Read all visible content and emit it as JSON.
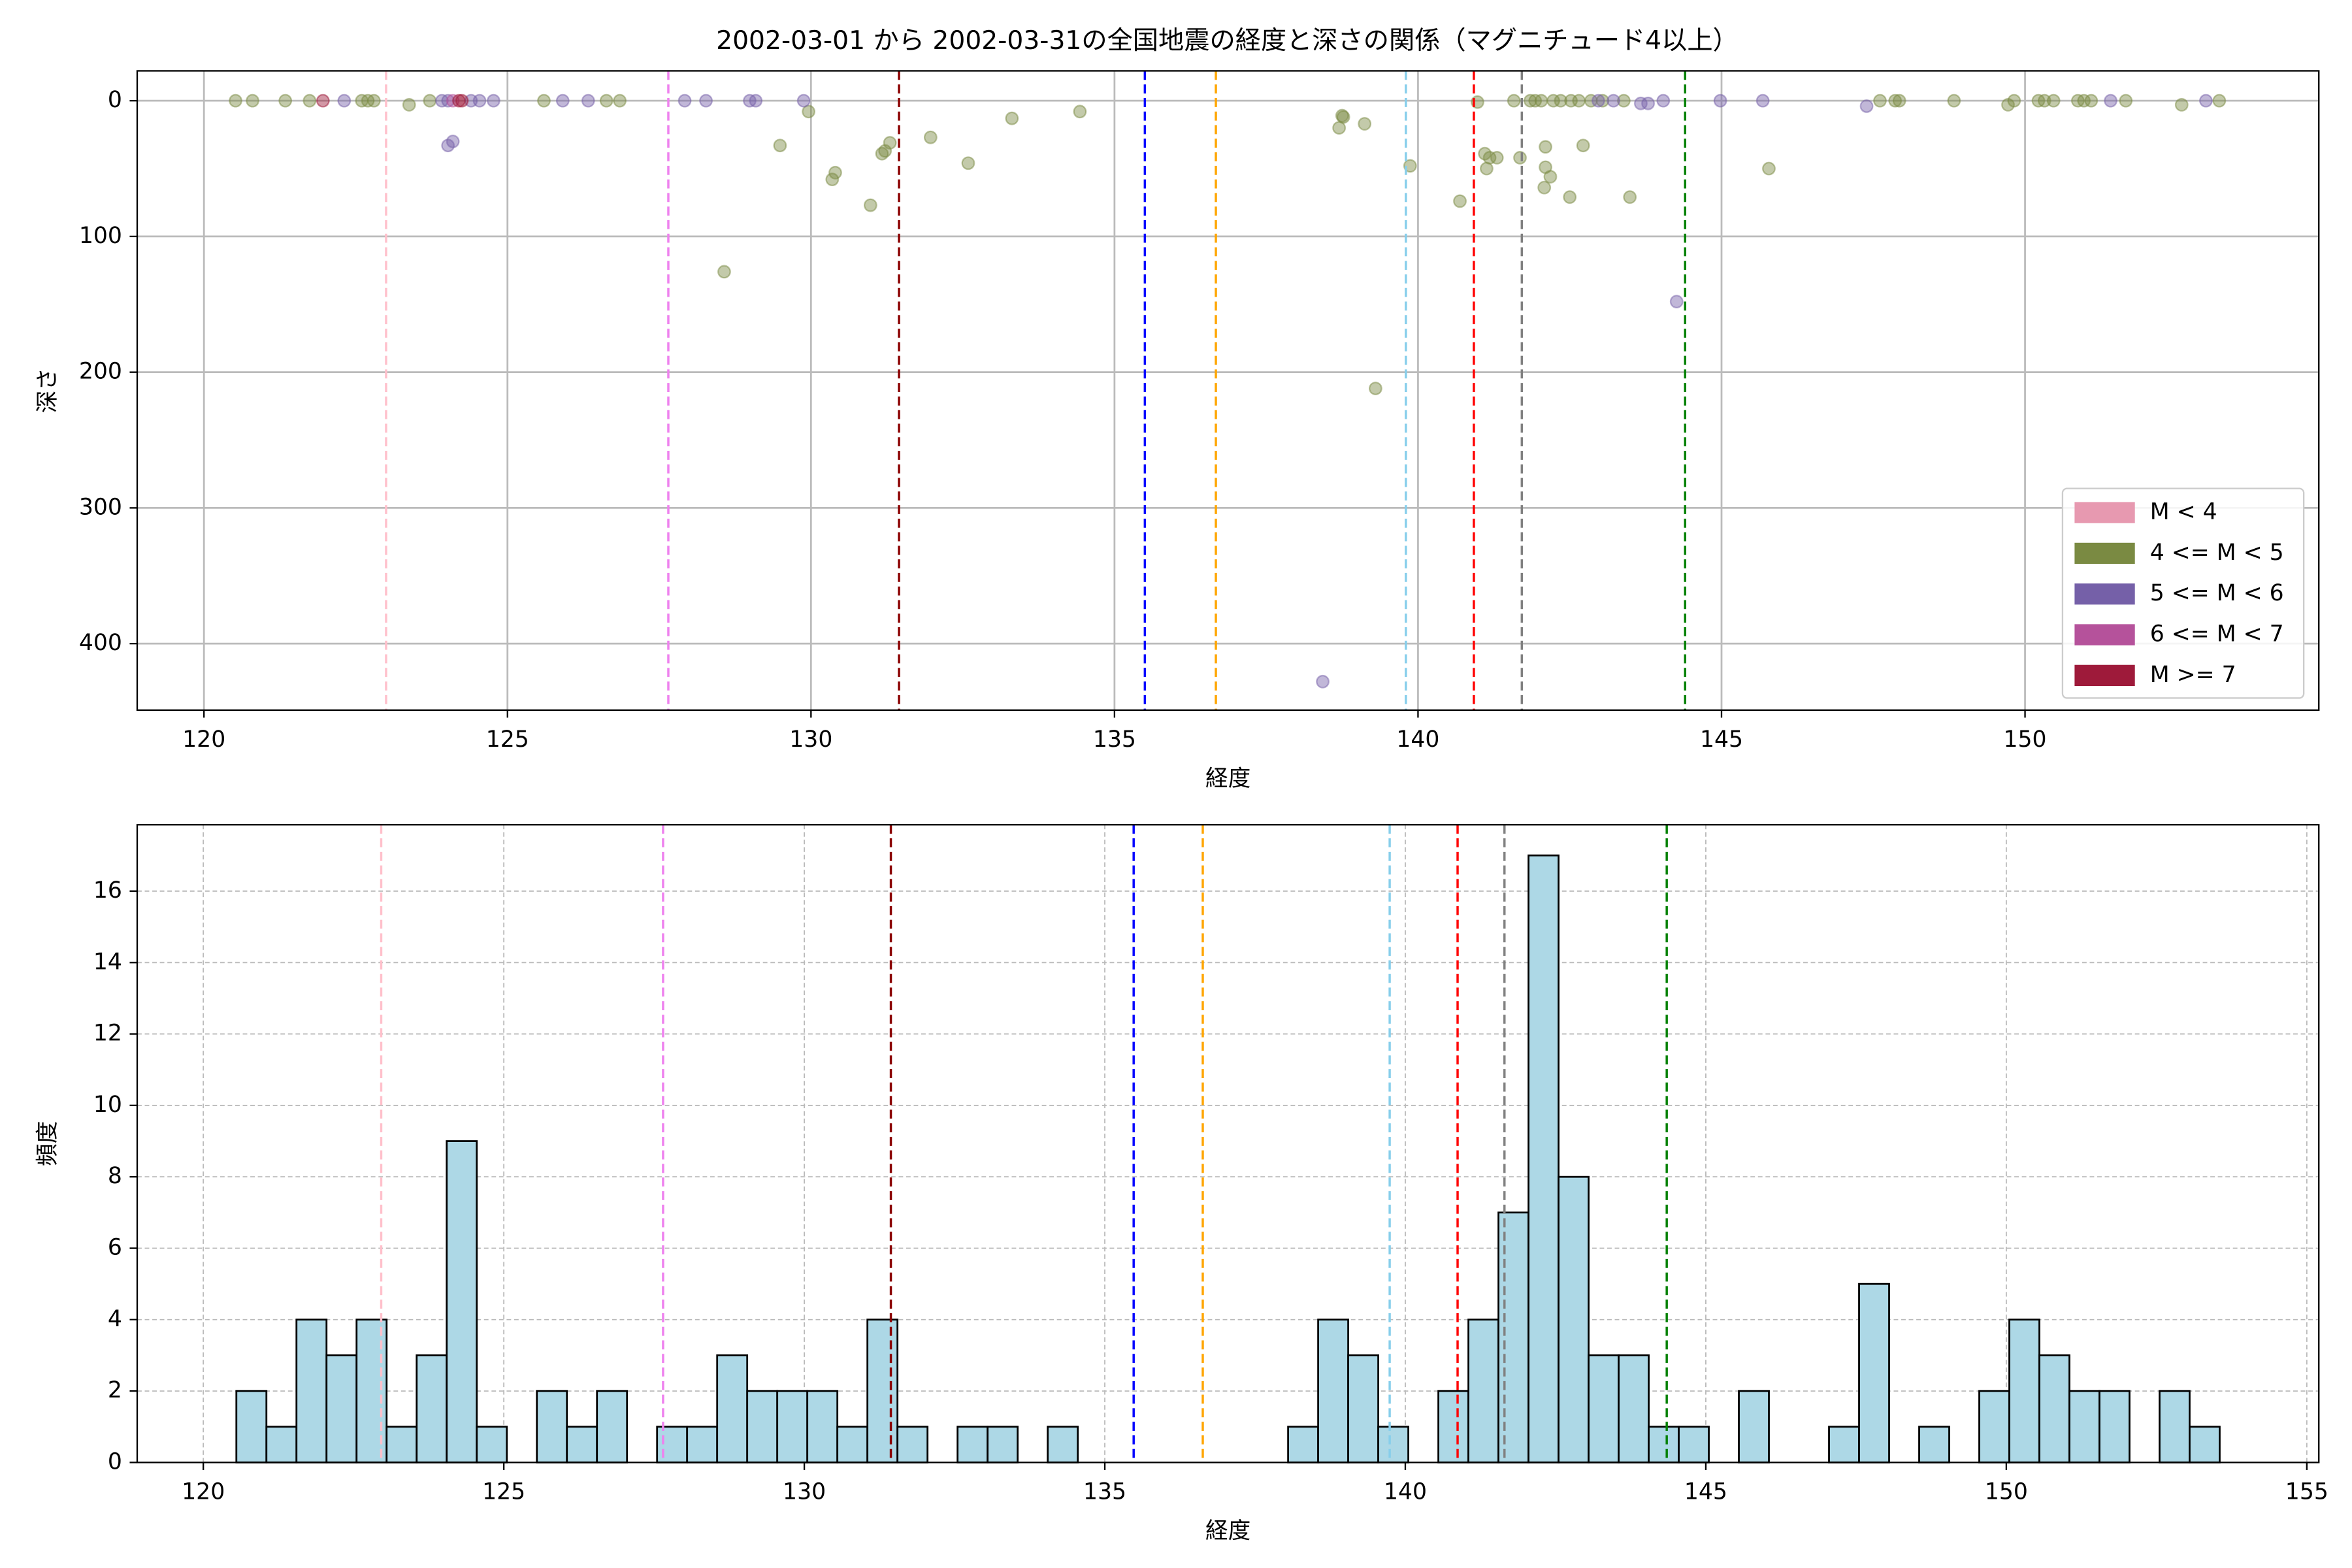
{
  "chart_data": [
    {
      "type": "scatter",
      "title": "2002-03-01 から 2002-03-31の全国地震の経度と深さの関係（マグニチュード4以上）",
      "xlabel": "経度",
      "ylabel": "深さ",
      "xlim": [
        118.9,
        154.84
      ],
      "ylim": [
        449,
        -22
      ],
      "xticks": [
        120,
        125,
        130,
        135,
        140,
        145,
        150
      ],
      "yticks": [
        0,
        100,
        200,
        300,
        400
      ],
      "grid": true,
      "grid_linestyle": "solid",
      "legend": "lower right",
      "vlines": [
        {
          "value": 123,
          "color": "pink"
        },
        {
          "value": 127.65,
          "color": "violet"
        },
        {
          "value": 131.45,
          "color": "darkred"
        },
        {
          "value": 135.5,
          "color": "blue"
        },
        {
          "value": 136.67,
          "color": "orange"
        },
        {
          "value": 139.8,
          "color": "skyblue"
        },
        {
          "value": 140.92,
          "color": "red"
        },
        {
          "value": 141.71,
          "color": "gray"
        },
        {
          "value": 144.4,
          "color": "green"
        }
      ],
      "series": [
        {
          "name": "M < 4",
          "color": "#e799b0",
          "x": [],
          "values": []
        },
        {
          "name": "4 <= M < 5",
          "color": "#7a8a42",
          "x": [
            120.52,
            120.8,
            121.34,
            121.74,
            122.6,
            122.7,
            122.8,
            123.38,
            123.72,
            125.6,
            126.63,
            126.85,
            129.49,
            129.96,
            128.57,
            130.35,
            130.4,
            130.98,
            131.17,
            131.22,
            131.3,
            131.97,
            132.59,
            133.31,
            134.43,
            138.7,
            138.75,
            138.77,
            139.12,
            139.3,
            139.87,
            140.69,
            140.98,
            141.1,
            141.13,
            141.18,
            141.3,
            141.58,
            141.68,
            141.85,
            141.93,
            142.03,
            142.1,
            142.1,
            142.08,
            142.18,
            142.23,
            142.35,
            142.52,
            142.5,
            142.65,
            142.72,
            142.85,
            143.04,
            143.39,
            143.49,
            145.78,
            147.61,
            147.86,
            147.93,
            148.83,
            149.72,
            149.82,
            150.22,
            150.32,
            150.47,
            150.87,
            150.97,
            151.09,
            151.66,
            152.58,
            153.2
          ],
          "values": [
            0,
            0,
            0,
            0,
            0,
            0,
            0,
            3,
            0,
            0,
            0,
            0,
            33,
            8,
            126,
            58,
            53,
            77,
            39,
            37,
            31,
            27,
            46,
            13,
            8,
            20,
            11,
            12,
            17,
            212,
            48,
            74,
            1,
            39,
            50,
            42,
            42,
            0,
            42,
            0,
            0,
            0,
            34,
            49,
            64,
            56,
            0,
            0,
            0,
            71,
            0,
            33,
            0,
            0,
            0,
            71,
            50,
            0,
            0,
            0,
            0,
            3,
            0,
            0,
            0,
            0,
            0,
            0,
            0,
            0,
            3,
            0
          ]
        },
        {
          "name": "5 <= M < 6",
          "color": "#7560a8",
          "x": [
            122.31,
            123.92,
            124.02,
            124.02,
            124.1,
            124.4,
            124.54,
            124.77,
            125.91,
            126.33,
            127.92,
            128.27,
            128.99,
            129.09,
            129.88,
            138.43,
            142.97,
            143.22,
            143.67,
            143.79,
            144.04,
            144.26,
            144.98,
            145.68,
            147.39,
            151.41,
            152.98
          ],
          "values": [
            0,
            0,
            0,
            33,
            30,
            0,
            0,
            0,
            0,
            0,
            0,
            0,
            0,
            0,
            0,
            428,
            0,
            0,
            2,
            2,
            0,
            148,
            0,
            0,
            4,
            0,
            0
          ]
        },
        {
          "name": "6 <= M < 7",
          "color": "#b5529b",
          "x": [
            124.1
          ],
          "values": [
            0
          ]
        },
        {
          "name": "M >= 7",
          "color": "#9e1a3a",
          "x": [
            121.96,
            124.2,
            124.25
          ],
          "values": [
            0,
            0,
            0
          ]
        }
      ]
    },
    {
      "type": "histogram",
      "xlabel": "経度",
      "ylabel": "頻度",
      "xlim": [
        118.9,
        155.2
      ],
      "ylim": [
        0,
        17.86
      ],
      "xticks": [
        120,
        125,
        130,
        135,
        140,
        145,
        150,
        155
      ],
      "yticks": [
        0,
        2,
        4,
        6,
        8,
        10,
        12,
        14,
        16
      ],
      "grid": true,
      "grid_linestyle": "dashed",
      "color": "#add8e6",
      "edgecolor": "#000000",
      "vlines": [
        {
          "value": 122.96,
          "color": "pink"
        },
        {
          "value": 127.65,
          "color": "violet"
        },
        {
          "value": 131.44,
          "color": "darkred"
        },
        {
          "value": 135.48,
          "color": "blue"
        },
        {
          "value": 136.63,
          "color": "orange"
        },
        {
          "value": 139.74,
          "color": "skyblue"
        },
        {
          "value": 140.87,
          "color": "red"
        },
        {
          "value": 141.65,
          "color": "gray"
        },
        {
          "value": 144.35,
          "color": "green"
        }
      ],
      "bins": [
        120.55,
        121.05,
        121.55,
        122.05,
        122.55,
        123.05,
        123.55,
        124.05,
        124.55,
        125.05,
        125.55,
        126.05,
        126.55,
        127.05,
        127.55,
        128.05,
        128.55,
        129.05,
        129.55,
        130.05,
        130.55,
        131.05,
        131.55,
        132.05,
        132.55,
        133.05,
        133.55,
        134.05,
        134.55,
        135.05,
        135.55,
        136.05,
        136.55,
        137.05,
        137.55,
        138.05,
        138.55,
        139.05,
        139.55,
        140.05,
        140.55,
        141.05,
        141.55,
        142.05,
        142.55,
        143.05,
        143.55,
        144.05,
        144.55,
        145.05,
        145.55,
        146.05,
        146.55,
        147.05,
        147.55,
        148.05,
        148.55,
        149.05,
        149.55,
        150.05,
        150.55,
        151.05,
        151.55,
        152.05,
        152.55,
        153.05,
        153.55
      ],
      "values": [
        2,
        1,
        4,
        3,
        4,
        1,
        3,
        9,
        1,
        0,
        2,
        1,
        2,
        0,
        1,
        1,
        3,
        2,
        2,
        2,
        1,
        4,
        1,
        0,
        1,
        1,
        0,
        1,
        0,
        0,
        0,
        0,
        0,
        0,
        0,
        1,
        4,
        3,
        1,
        0,
        2,
        4,
        7,
        17,
        8,
        3,
        3,
        1,
        1,
        0,
        2,
        0,
        0,
        1,
        5,
        0,
        1,
        0,
        2,
        4,
        3,
        2,
        2,
        0,
        2,
        1
      ]
    }
  ]
}
